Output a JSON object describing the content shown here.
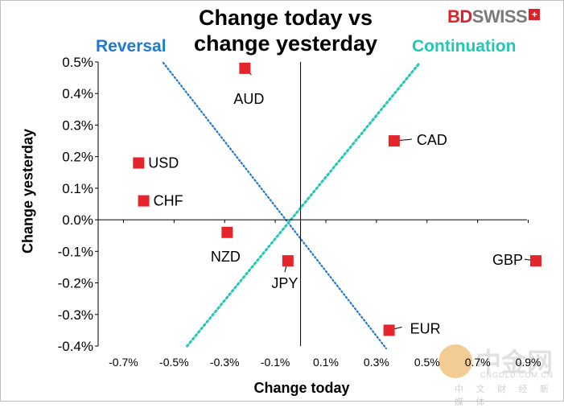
{
  "chart_data": {
    "type": "scatter",
    "title": "Change today vs change yesterday",
    "title_lines": [
      "Change today vs",
      "change yesterday"
    ],
    "xlabel": "Change today",
    "ylabel": "Change yesterday",
    "xlim": [
      -0.8,
      1.0
    ],
    "ylim": [
      -0.4,
      0.5
    ],
    "x_ticks": [
      -0.7,
      -0.5,
      -0.3,
      -0.1,
      0.1,
      0.3,
      0.5,
      0.7,
      0.9
    ],
    "x_tick_labels": [
      "-0.7%",
      "-0.5%",
      "-0.3%",
      "-0.1%",
      "0.1%",
      "0.3%",
      "0.5%",
      "0.7%",
      "0.9%"
    ],
    "y_ticks": [
      0.5,
      0.4,
      0.3,
      0.2,
      0.1,
      0.0,
      -0.1,
      -0.2,
      -0.3,
      -0.4
    ],
    "y_tick_labels": [
      "0.5%",
      "0.4%",
      "0.3%",
      "0.2%",
      "0.1%",
      "0.0%",
      "-0.1%",
      "-0.2%",
      "-0.3%",
      "-0.4%"
    ],
    "grid": false,
    "legend": "none",
    "points": [
      {
        "label": "AUD",
        "x": -0.22,
        "y": 0.48
      },
      {
        "label": "CAD",
        "x": 0.37,
        "y": 0.25
      },
      {
        "label": "USD",
        "x": -0.64,
        "y": 0.18
      },
      {
        "label": "CHF",
        "x": -0.62,
        "y": 0.06
      },
      {
        "label": "NZD",
        "x": -0.29,
        "y": -0.04
      },
      {
        "label": "JPY",
        "x": -0.05,
        "y": -0.13
      },
      {
        "label": "GBP",
        "x": 0.93,
        "y": -0.13
      },
      {
        "label": "EUR",
        "x": 0.35,
        "y": -0.35
      }
    ],
    "regions": {
      "reversal": "Reversal",
      "continuation": "Continuation"
    },
    "colors": {
      "marker": "#e5252c",
      "reversal": "#1f78d1",
      "continuation": "#1fc9b4",
      "axis": "#000000"
    }
  },
  "logo": {
    "part1": "BD",
    "part2": "SWISS"
  },
  "watermark": {
    "chinese": "中金网",
    "site": "CNGOLD.COM.CN",
    "tagline": "中 文 财 经 新 媒 体"
  }
}
